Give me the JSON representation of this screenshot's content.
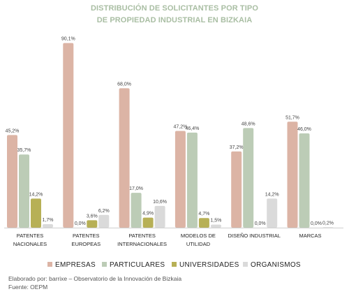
{
  "chart_data": {
    "type": "bar",
    "title_line1": "DISTRIBUCIÓN DE SOLICITANTES POR TIPO",
    "title_line2": "DE PROPIEDAD INDUSTRIAL EN BIZKAIA",
    "categories": [
      [
        "PATENTES",
        "NACIONALES"
      ],
      [
        "PATENTES",
        "EUROPEAS"
      ],
      [
        "PATENTES",
        "INTERNACIONALES"
      ],
      [
        "MODELOS DE",
        "UTILIDAD"
      ],
      [
        "DISEÑO INDUSTRIAL"
      ],
      [
        "MARCAS"
      ]
    ],
    "series": [
      {
        "name": "EMPRESAS",
        "color": "#dcb4a5",
        "values": [
          45.2,
          90.1,
          68.0,
          47.2,
          37.2,
          51.7
        ],
        "labels": [
          "45,2%",
          "90,1%",
          "68,0%",
          "47,2%",
          "37,2%",
          "51,7%"
        ]
      },
      {
        "name": "PARTICULARES",
        "color": "#bcccb6",
        "values": [
          35.7,
          0.0,
          17.0,
          46.4,
          48.6,
          46.0
        ],
        "labels": [
          "35,7%",
          "0,0%",
          "17,0%",
          "46,4%",
          "48,6%",
          "46,0%"
        ]
      },
      {
        "name": "UNIVERSIDADES",
        "color": "#b7b056",
        "values": [
          14.2,
          3.6,
          4.9,
          4.7,
          0.0,
          0.0
        ],
        "labels": [
          "14,2%",
          "3,6%",
          "4,9%",
          "4,7%",
          "0,0%",
          "0,0%"
        ]
      },
      {
        "name": "ORGANISMOS",
        "color": "#dadada",
        "values": [
          1.7,
          6.2,
          10.6,
          1.5,
          14.2,
          0.2
        ],
        "labels": [
          "1,7%",
          "6,2%",
          "10,6%",
          "1,5%",
          "14,2%",
          "0,2%"
        ]
      }
    ],
    "ylim": [
      0,
      92
    ],
    "grid": false,
    "legend_position": "bottom"
  },
  "footer": {
    "credit": "Elaborado por: barrixe – Observatorio de la Innovación de Bizkaia",
    "source": "Fuente: OEPM"
  }
}
